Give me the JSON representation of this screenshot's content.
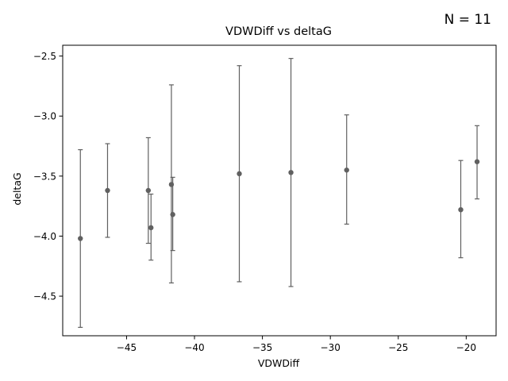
{
  "annotation": "N = 11",
  "chart_data": {
    "type": "scatter",
    "title": "VDWDiff vs deltaG",
    "xlabel": "VDWDiff",
    "ylabel": "deltaG",
    "xlim": [
      -49.7,
      -17.8
    ],
    "ylim": [
      -4.83,
      -2.41
    ],
    "xticks": [
      -45,
      -40,
      -35,
      -30,
      -25,
      -20
    ],
    "yticks": [
      -4.5,
      -4.0,
      -3.5,
      -3.0,
      -2.5
    ],
    "xtick_labels": [
      "−45",
      "−40",
      "−35",
      "−30",
      "−25",
      "−20"
    ],
    "ytick_labels": [
      "−4.5",
      "−4.0",
      "−3.5",
      "−3.0",
      "−2.5"
    ],
    "grid": false,
    "marker_color": "#606060",
    "points": [
      {
        "x": -48.4,
        "y": -4.02,
        "err_low": -4.76,
        "err_high": -3.28
      },
      {
        "x": -46.4,
        "y": -3.62,
        "err_low": -4.01,
        "err_high": -3.23
      },
      {
        "x": -43.4,
        "y": -3.62,
        "err_low": -4.06,
        "err_high": -3.18
      },
      {
        "x": -43.2,
        "y": -3.93,
        "err_low": -4.2,
        "err_high": -3.65
      },
      {
        "x": -41.7,
        "y": -3.57,
        "err_low": -4.39,
        "err_high": -2.74
      },
      {
        "x": -41.6,
        "y": -3.82,
        "err_low": -4.12,
        "err_high": -3.51
      },
      {
        "x": -36.7,
        "y": -3.48,
        "err_low": -4.38,
        "err_high": -2.58
      },
      {
        "x": -32.9,
        "y": -3.47,
        "err_low": -4.42,
        "err_high": -2.52
      },
      {
        "x": -28.8,
        "y": -3.45,
        "err_low": -3.9,
        "err_high": -2.99
      },
      {
        "x": -20.4,
        "y": -3.78,
        "err_low": -4.18,
        "err_high": -3.37
      },
      {
        "x": -19.2,
        "y": -3.38,
        "err_low": -3.69,
        "err_high": -3.08
      }
    ]
  }
}
